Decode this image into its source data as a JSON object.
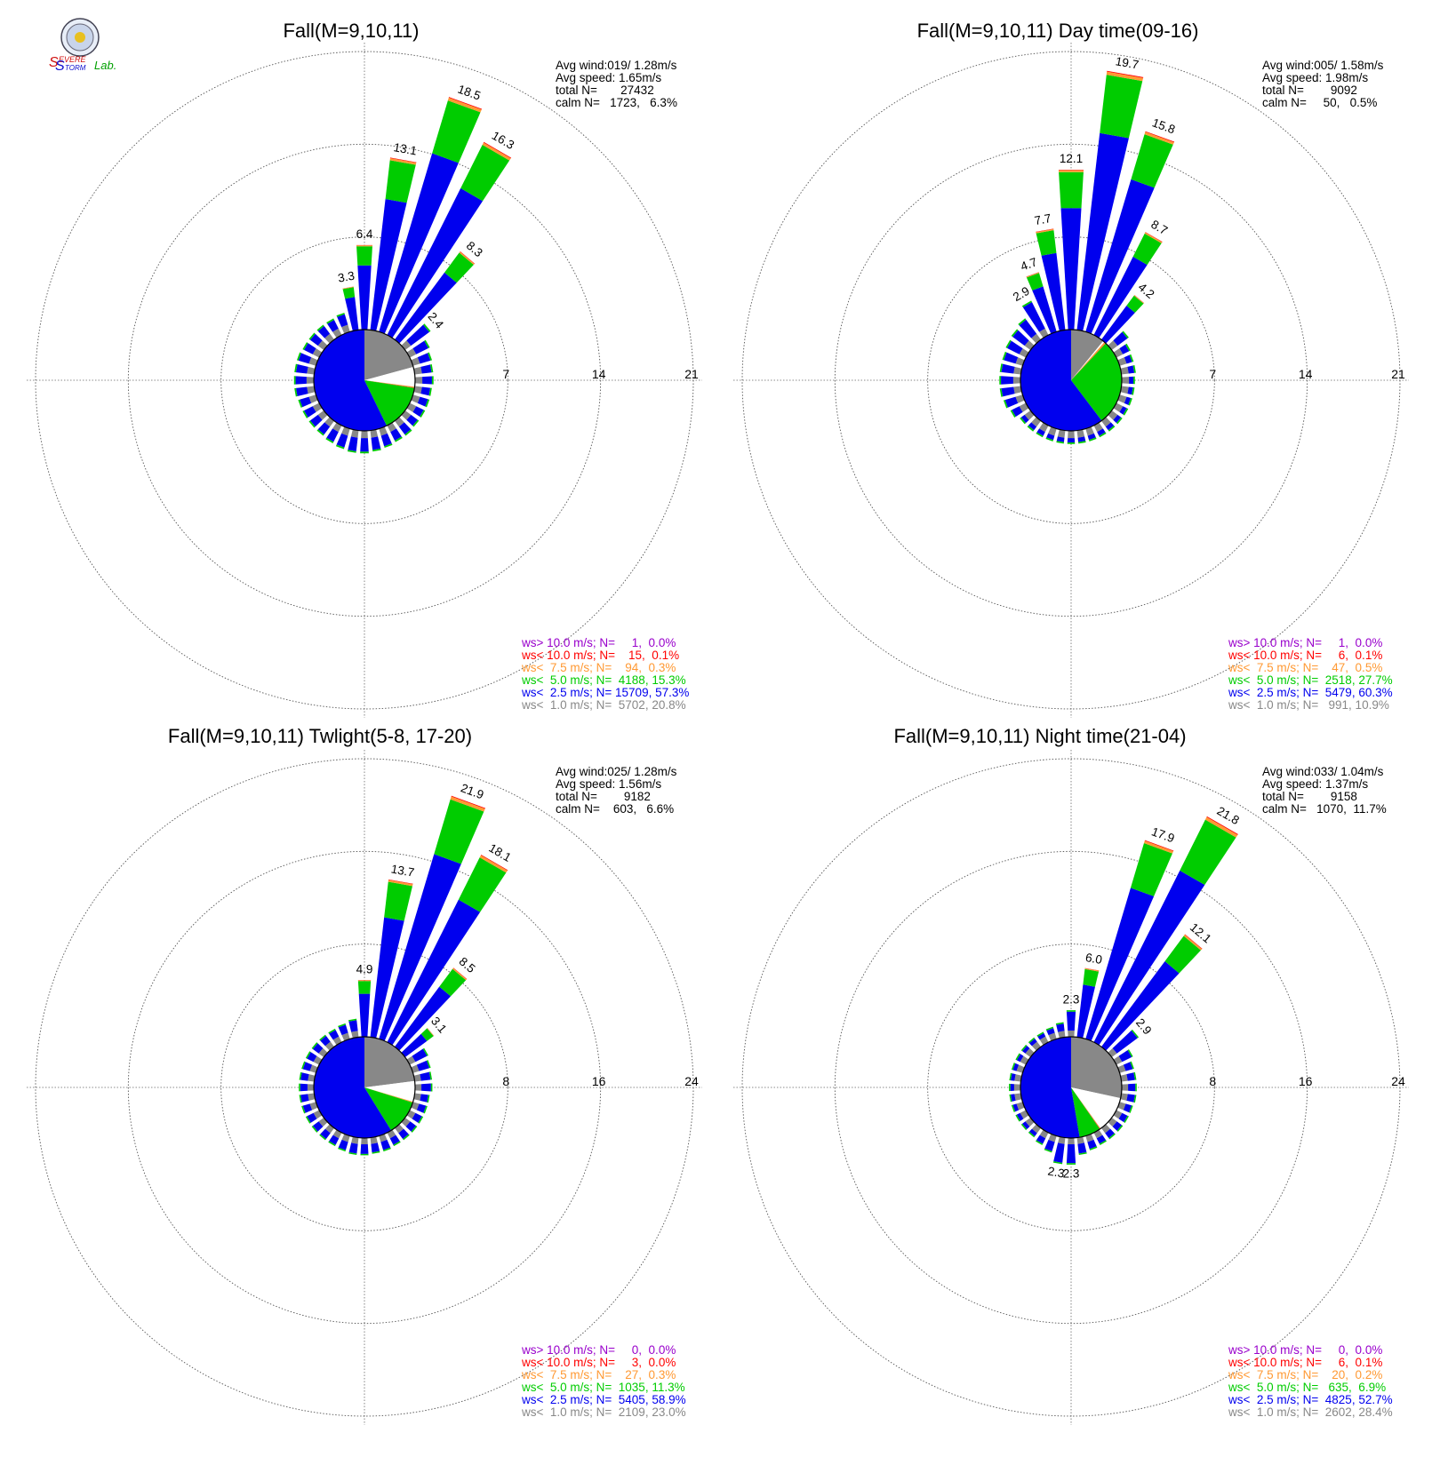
{
  "logo": {
    "text_parts": [
      "S",
      "EVERE",
      "S",
      "TORM",
      "Lab."
    ],
    "colors": {
      "severe": "#d01010",
      "storm": "#1010d0",
      "lab": "#00a000"
    }
  },
  "legend_colors": {
    "gt10": "#9900cc",
    "lt10": "#ff0000",
    "lt75": "#ff9933",
    "lt5": "#00cc00",
    "lt25": "#0000ee",
    "lt1": "#888888"
  },
  "chart_data": [
    {
      "type": "wind_rose",
      "title": "Fall(M=9,10,11)",
      "rings": [
        7,
        14,
        21
      ],
      "rmax": 21,
      "stats": {
        "avg_wind": "Avg wind:019/ 1.28m/s",
        "avg_speed": "Avg speed: 1.65m/s",
        "total": "total N=       27432",
        "calm": "calm N=   1723,   6.3%"
      },
      "legend": [
        "ws> 10.0 m/s; N=     1,  0.0%",
        "ws< 10.0 m/s; N=    15,  0.1%",
        "ws<  7.5 m/s; N=    94,  0.3%",
        "ws<  5.0 m/s; N=  4188, 15.3%",
        "ws<  2.5 m/s; N= 15709, 57.3%",
        "ws<  1.0 m/s; N=  5702, 20.8%"
      ],
      "bars": [
        {
          "dir": 350,
          "total": 3.3,
          "label": "3.3"
        },
        {
          "dir": 0,
          "total": 6.4,
          "label": "6.4"
        },
        {
          "dir": 10,
          "total": 13.1,
          "label": "13.1"
        },
        {
          "dir": 20,
          "total": 18.5,
          "label": "18.5"
        },
        {
          "dir": 30,
          "total": 16.3,
          "label": "16.3"
        },
        {
          "dir": 40,
          "total": 8.3,
          "label": "8.3"
        },
        {
          "dir": 50,
          "total": 2.4,
          "label": "2.4"
        },
        {
          "dir": 60,
          "total": 1.7
        },
        {
          "dir": 70,
          "total": 1.5
        },
        {
          "dir": 80,
          "total": 1.4
        },
        {
          "dir": 90,
          "total": 1.4
        },
        {
          "dir": 100,
          "total": 1.3
        },
        {
          "dir": 110,
          "total": 1.3
        },
        {
          "dir": 120,
          "total": 1.3
        },
        {
          "dir": 130,
          "total": 1.3
        },
        {
          "dir": 140,
          "total": 1.4
        },
        {
          "dir": 150,
          "total": 1.4
        },
        {
          "dir": 160,
          "total": 1.5
        },
        {
          "dir": 170,
          "total": 1.6
        },
        {
          "dir": 180,
          "total": 1.7
        },
        {
          "dir": 190,
          "total": 1.7
        },
        {
          "dir": 200,
          "total": 1.6
        },
        {
          "dir": 210,
          "total": 1.5
        },
        {
          "dir": 220,
          "total": 1.4
        },
        {
          "dir": 230,
          "total": 1.4
        },
        {
          "dir": 240,
          "total": 1.4
        },
        {
          "dir": 250,
          "total": 1.4
        },
        {
          "dir": 260,
          "total": 1.5
        },
        {
          "dir": 270,
          "total": 1.5
        },
        {
          "dir": 280,
          "total": 1.5
        },
        {
          "dir": 290,
          "total": 1.5
        },
        {
          "dir": 300,
          "total": 1.4
        },
        {
          "dir": 310,
          "total": 1.4
        },
        {
          "dir": 320,
          "total": 1.4
        },
        {
          "dir": 330,
          "total": 1.4
        },
        {
          "dir": 340,
          "total": 1.5
        }
      ],
      "pie": [
        {
          "class": "lt1",
          "value": 20.8
        },
        {
          "class": "calm",
          "value": 6.3
        },
        {
          "class": "lt75",
          "value": 0.3
        },
        {
          "class": "lt10",
          "value": 0.1
        },
        {
          "class": "lt5",
          "value": 15.3
        },
        {
          "class": "lt25",
          "value": 57.3
        }
      ]
    },
    {
      "type": "wind_rose",
      "title": "Fall(M=9,10,11) Day time(09-16)",
      "rings": [
        7,
        14,
        21
      ],
      "rmax": 21,
      "stats": {
        "avg_wind": "Avg wind:005/ 1.58m/s",
        "avg_speed": "Avg speed: 1.98m/s",
        "total": "total N=        9092",
        "calm": "calm N=     50,   0.5%"
      },
      "legend": [
        "ws> 10.0 m/s; N=     1,  0.0%",
        "ws< 10.0 m/s; N=     6,  0.1%",
        "ws<  7.5 m/s; N=    47,  0.5%",
        "ws<  5.0 m/s; N=  2518, 27.7%",
        "ws<  2.5 m/s; N=  5479, 60.3%",
        "ws<  1.0 m/s; N=   991, 10.9%"
      ],
      "bars": [
        {
          "dir": 330,
          "total": 2.9,
          "label": "2.9"
        },
        {
          "dir": 340,
          "total": 4.7,
          "label": "4.7"
        },
        {
          "dir": 350,
          "total": 7.7,
          "label": "7.7"
        },
        {
          "dir": 0,
          "total": 12.1,
          "label": "12.1"
        },
        {
          "dir": 10,
          "total": 19.7,
          "label": "19.7"
        },
        {
          "dir": 20,
          "total": 15.8,
          "label": "15.8"
        },
        {
          "dir": 30,
          "total": 8.7,
          "label": "8.7"
        },
        {
          "dir": 40,
          "total": 4.2,
          "label": "4.2"
        },
        {
          "dir": 50,
          "total": 1.6
        },
        {
          "dir": 60,
          "total": 1.2
        },
        {
          "dir": 70,
          "total": 1.1
        },
        {
          "dir": 80,
          "total": 1.1
        },
        {
          "dir": 90,
          "total": 1.0
        },
        {
          "dir": 100,
          "total": 1.0
        },
        {
          "dir": 110,
          "total": 1.0
        },
        {
          "dir": 120,
          "total": 1.0
        },
        {
          "dir": 130,
          "total": 1.0
        },
        {
          "dir": 140,
          "total": 1.0
        },
        {
          "dir": 150,
          "total": 1.0
        },
        {
          "dir": 160,
          "total": 1.0
        },
        {
          "dir": 170,
          "total": 1.0
        },
        {
          "dir": 180,
          "total": 1.0
        },
        {
          "dir": 190,
          "total": 1.0
        },
        {
          "dir": 200,
          "total": 1.0
        },
        {
          "dir": 210,
          "total": 1.0
        },
        {
          "dir": 220,
          "total": 1.0
        },
        {
          "dir": 230,
          "total": 1.0
        },
        {
          "dir": 240,
          "total": 1.3
        },
        {
          "dir": 250,
          "total": 1.5
        },
        {
          "dir": 260,
          "total": 1.6
        },
        {
          "dir": 270,
          "total": 1.6
        },
        {
          "dir": 280,
          "total": 1.6
        },
        {
          "dir": 290,
          "total": 1.6
        },
        {
          "dir": 300,
          "total": 1.7
        },
        {
          "dir": 310,
          "total": 1.8
        },
        {
          "dir": 320,
          "total": 2.0
        }
      ],
      "pie": [
        {
          "class": "lt1",
          "value": 10.9
        },
        {
          "class": "calm",
          "value": 0.5
        },
        {
          "class": "lt75",
          "value": 0.5
        },
        {
          "class": "lt10",
          "value": 0.1
        },
        {
          "class": "lt5",
          "value": 27.7
        },
        {
          "class": "lt25",
          "value": 60.3
        }
      ]
    },
    {
      "type": "wind_rose",
      "title": "Fall(M=9,10,11) Twlight(5-8, 17-20)",
      "rings": [
        8,
        16,
        24
      ],
      "rmax": 24,
      "stats": {
        "avg_wind": "Avg wind:025/ 1.28m/s",
        "avg_speed": "Avg speed: 1.56m/s",
        "total": "total N=        9182",
        "calm": "calm N=    603,   6.6%"
      },
      "legend": [
        "ws> 10.0 m/s; N=     0,  0.0%",
        "ws< 10.0 m/s; N=     3,  0.0%",
        "ws<  7.5 m/s; N=    27,  0.3%",
        "ws<  5.0 m/s; N=  1035, 11.3%",
        "ws<  2.5 m/s; N=  5405, 58.9%",
        "ws<  1.0 m/s; N=  2109, 23.0%"
      ],
      "bars": [
        {
          "dir": 350,
          "total": 1.6
        },
        {
          "dir": 0,
          "total": 4.9,
          "label": "4.9"
        },
        {
          "dir": 10,
          "total": 13.7,
          "label": "13.7"
        },
        {
          "dir": 20,
          "total": 21.9,
          "label": "21.9"
        },
        {
          "dir": 30,
          "total": 18.1,
          "label": "18.1"
        },
        {
          "dir": 40,
          "total": 8.5,
          "label": "8.5"
        },
        {
          "dir": 50,
          "total": 3.1,
          "label": "3.1"
        },
        {
          "dir": 60,
          "total": 1.8
        },
        {
          "dir": 70,
          "total": 1.6
        },
        {
          "dir": 80,
          "total": 1.5
        },
        {
          "dir": 90,
          "total": 1.5
        },
        {
          "dir": 100,
          "total": 1.3
        },
        {
          "dir": 110,
          "total": 1.3
        },
        {
          "dir": 120,
          "total": 1.3
        },
        {
          "dir": 130,
          "total": 1.3
        },
        {
          "dir": 140,
          "total": 1.3
        },
        {
          "dir": 150,
          "total": 1.3
        },
        {
          "dir": 160,
          "total": 1.4
        },
        {
          "dir": 170,
          "total": 1.4
        },
        {
          "dir": 180,
          "total": 1.5
        },
        {
          "dir": 190,
          "total": 1.5
        },
        {
          "dir": 200,
          "total": 1.4
        },
        {
          "dir": 210,
          "total": 1.3
        },
        {
          "dir": 220,
          "total": 1.3
        },
        {
          "dir": 230,
          "total": 1.3
        },
        {
          "dir": 240,
          "total": 1.3
        },
        {
          "dir": 250,
          "total": 1.3
        },
        {
          "dir": 260,
          "total": 1.3
        },
        {
          "dir": 270,
          "total": 1.3
        },
        {
          "dir": 280,
          "total": 1.3
        },
        {
          "dir": 290,
          "total": 1.3
        },
        {
          "dir": 300,
          "total": 1.3
        },
        {
          "dir": 310,
          "total": 1.3
        },
        {
          "dir": 320,
          "total": 1.3
        },
        {
          "dir": 330,
          "total": 1.3
        },
        {
          "dir": 340,
          "total": 1.4
        }
      ],
      "pie": [
        {
          "class": "lt1",
          "value": 23.0
        },
        {
          "class": "calm",
          "value": 6.6
        },
        {
          "class": "lt75",
          "value": 0.3
        },
        {
          "class": "lt10",
          "value": 0.0
        },
        {
          "class": "lt5",
          "value": 11.3
        },
        {
          "class": "lt25",
          "value": 58.9
        }
      ]
    },
    {
      "type": "wind_rose",
      "title": "Fall(M=9,10,11) Night time(21-04)",
      "rings": [
        8,
        16,
        24
      ],
      "rmax": 24,
      "stats": {
        "avg_wind": "Avg wind:033/ 1.04m/s",
        "avg_speed": "Avg speed: 1.37m/s",
        "total": "total N=        9158",
        "calm": "calm N=   1070,  11.7%"
      },
      "legend": [
        "ws> 10.0 m/s; N=     0,  0.0%",
        "ws< 10.0 m/s; N=     6,  0.1%",
        "ws<  7.5 m/s; N=    20,  0.2%",
        "ws<  5.0 m/s; N=   635,  6.9%",
        "ws<  2.5 m/s; N=  4825, 52.7%",
        "ws<  1.0 m/s; N=  2602, 28.4%"
      ],
      "bars": [
        {
          "dir": 0,
          "total": 2.3,
          "label": "2.3"
        },
        {
          "dir": 10,
          "total": 6.0,
          "label": "6.0"
        },
        {
          "dir": 20,
          "total": 17.9,
          "label": "17.9"
        },
        {
          "dir": 30,
          "total": 21.8,
          "label": "21.8"
        },
        {
          "dir": 40,
          "total": 12.1,
          "label": "12.1"
        },
        {
          "dir": 50,
          "total": 2.9,
          "label": "2.9"
        },
        {
          "dir": 60,
          "total": 1.6
        },
        {
          "dir": 70,
          "total": 1.3
        },
        {
          "dir": 80,
          "total": 1.3
        },
        {
          "dir": 90,
          "total": 1.3
        },
        {
          "dir": 100,
          "total": 1.3
        },
        {
          "dir": 110,
          "total": 1.2
        },
        {
          "dir": 120,
          "total": 1.2
        },
        {
          "dir": 130,
          "total": 1.2
        },
        {
          "dir": 140,
          "total": 1.2
        },
        {
          "dir": 150,
          "total": 1.2
        },
        {
          "dir": 160,
          "total": 1.3
        },
        {
          "dir": 170,
          "total": 1.5
        },
        {
          "dir": 180,
          "total": 2.3,
          "label": "2.3"
        },
        {
          "dir": 190,
          "total": 2.3,
          "label": "2.3"
        },
        {
          "dir": 200,
          "total": 1.5
        },
        {
          "dir": 210,
          "total": 1.2
        },
        {
          "dir": 220,
          "total": 1.0
        },
        {
          "dir": 230,
          "total": 1.0
        },
        {
          "dir": 240,
          "total": 1.0
        },
        {
          "dir": 250,
          "total": 1.0
        },
        {
          "dir": 260,
          "total": 1.0
        },
        {
          "dir": 270,
          "total": 1.0
        },
        {
          "dir": 280,
          "total": 1.0
        },
        {
          "dir": 290,
          "total": 1.0
        },
        {
          "dir": 300,
          "total": 1.0
        },
        {
          "dir": 310,
          "total": 1.0
        },
        {
          "dir": 320,
          "total": 1.0
        },
        {
          "dir": 330,
          "total": 1.0
        },
        {
          "dir": 340,
          "total": 1.1
        },
        {
          "dir": 350,
          "total": 1.3
        }
      ],
      "pie": [
        {
          "class": "lt1",
          "value": 28.4
        },
        {
          "class": "calm",
          "value": 11.7
        },
        {
          "class": "lt75",
          "value": 0.2
        },
        {
          "class": "lt10",
          "value": 0.1
        },
        {
          "class": "lt5",
          "value": 6.9
        },
        {
          "class": "lt25",
          "value": 52.7
        }
      ]
    }
  ]
}
